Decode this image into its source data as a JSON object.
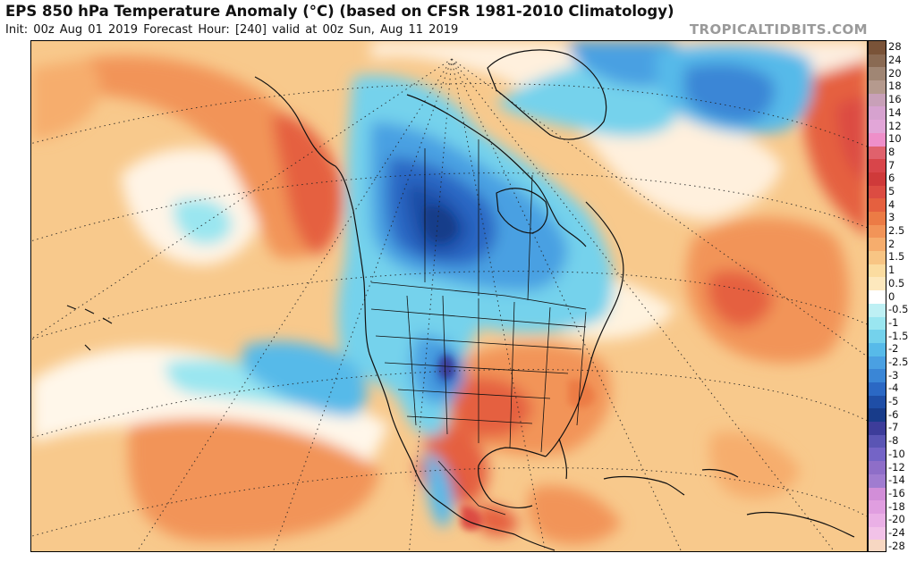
{
  "header": {
    "title": "EPS 850 hPa Temperature Anomaly (°C) (based on CFSR 1981-2010 Climatology)",
    "subtitle": "Init: 00z Aug 01 2019   Forecast Hour: [240]   valid at 00z Sun, Aug 11 2019",
    "site": "TROPICALTIDBITS.COM"
  },
  "colorbar": {
    "labels": [
      "28",
      "24",
      "20",
      "18",
      "16",
      "14",
      "12",
      "10",
      "8",
      "7",
      "6",
      "5",
      "4",
      "3",
      "2.5",
      "2",
      "1.5",
      "1",
      "0.5",
      "0",
      "-0.5",
      "-1",
      "-1.5",
      "-2",
      "-2.5",
      "-3",
      "-4",
      "-5",
      "-6",
      "-7",
      "-8",
      "-10",
      "-12",
      "-14",
      "-16",
      "-18",
      "-20",
      "-24",
      "-28"
    ],
    "colors": [
      "#7a5338",
      "#8a6a53",
      "#a08674",
      "#b59a8e",
      "#c8a0b8",
      "#d6a2cf",
      "#e2a6d8",
      "#ee8fc9",
      "#e0616c",
      "#d8454a",
      "#cf3a3a",
      "#dc4c42",
      "#e5603f",
      "#ec7b45",
      "#f29458",
      "#f6ad6d",
      "#f8c584",
      "#fbdca0",
      "#fde8bd",
      "#ffffff",
      "#bef0f4",
      "#9ae6f0",
      "#74d2ec",
      "#57bae9",
      "#4aa0e2",
      "#3a86d6",
      "#2b68c4",
      "#1f4ea6",
      "#183c8a",
      "#3d3d9a",
      "#5a55b4",
      "#7464c6",
      "#8e6ec8",
      "#a07cd0",
      "#d28ed8",
      "#e09ee0",
      "#eab0e6",
      "#f2c2e8",
      "#f7d7c2"
    ]
  }
}
